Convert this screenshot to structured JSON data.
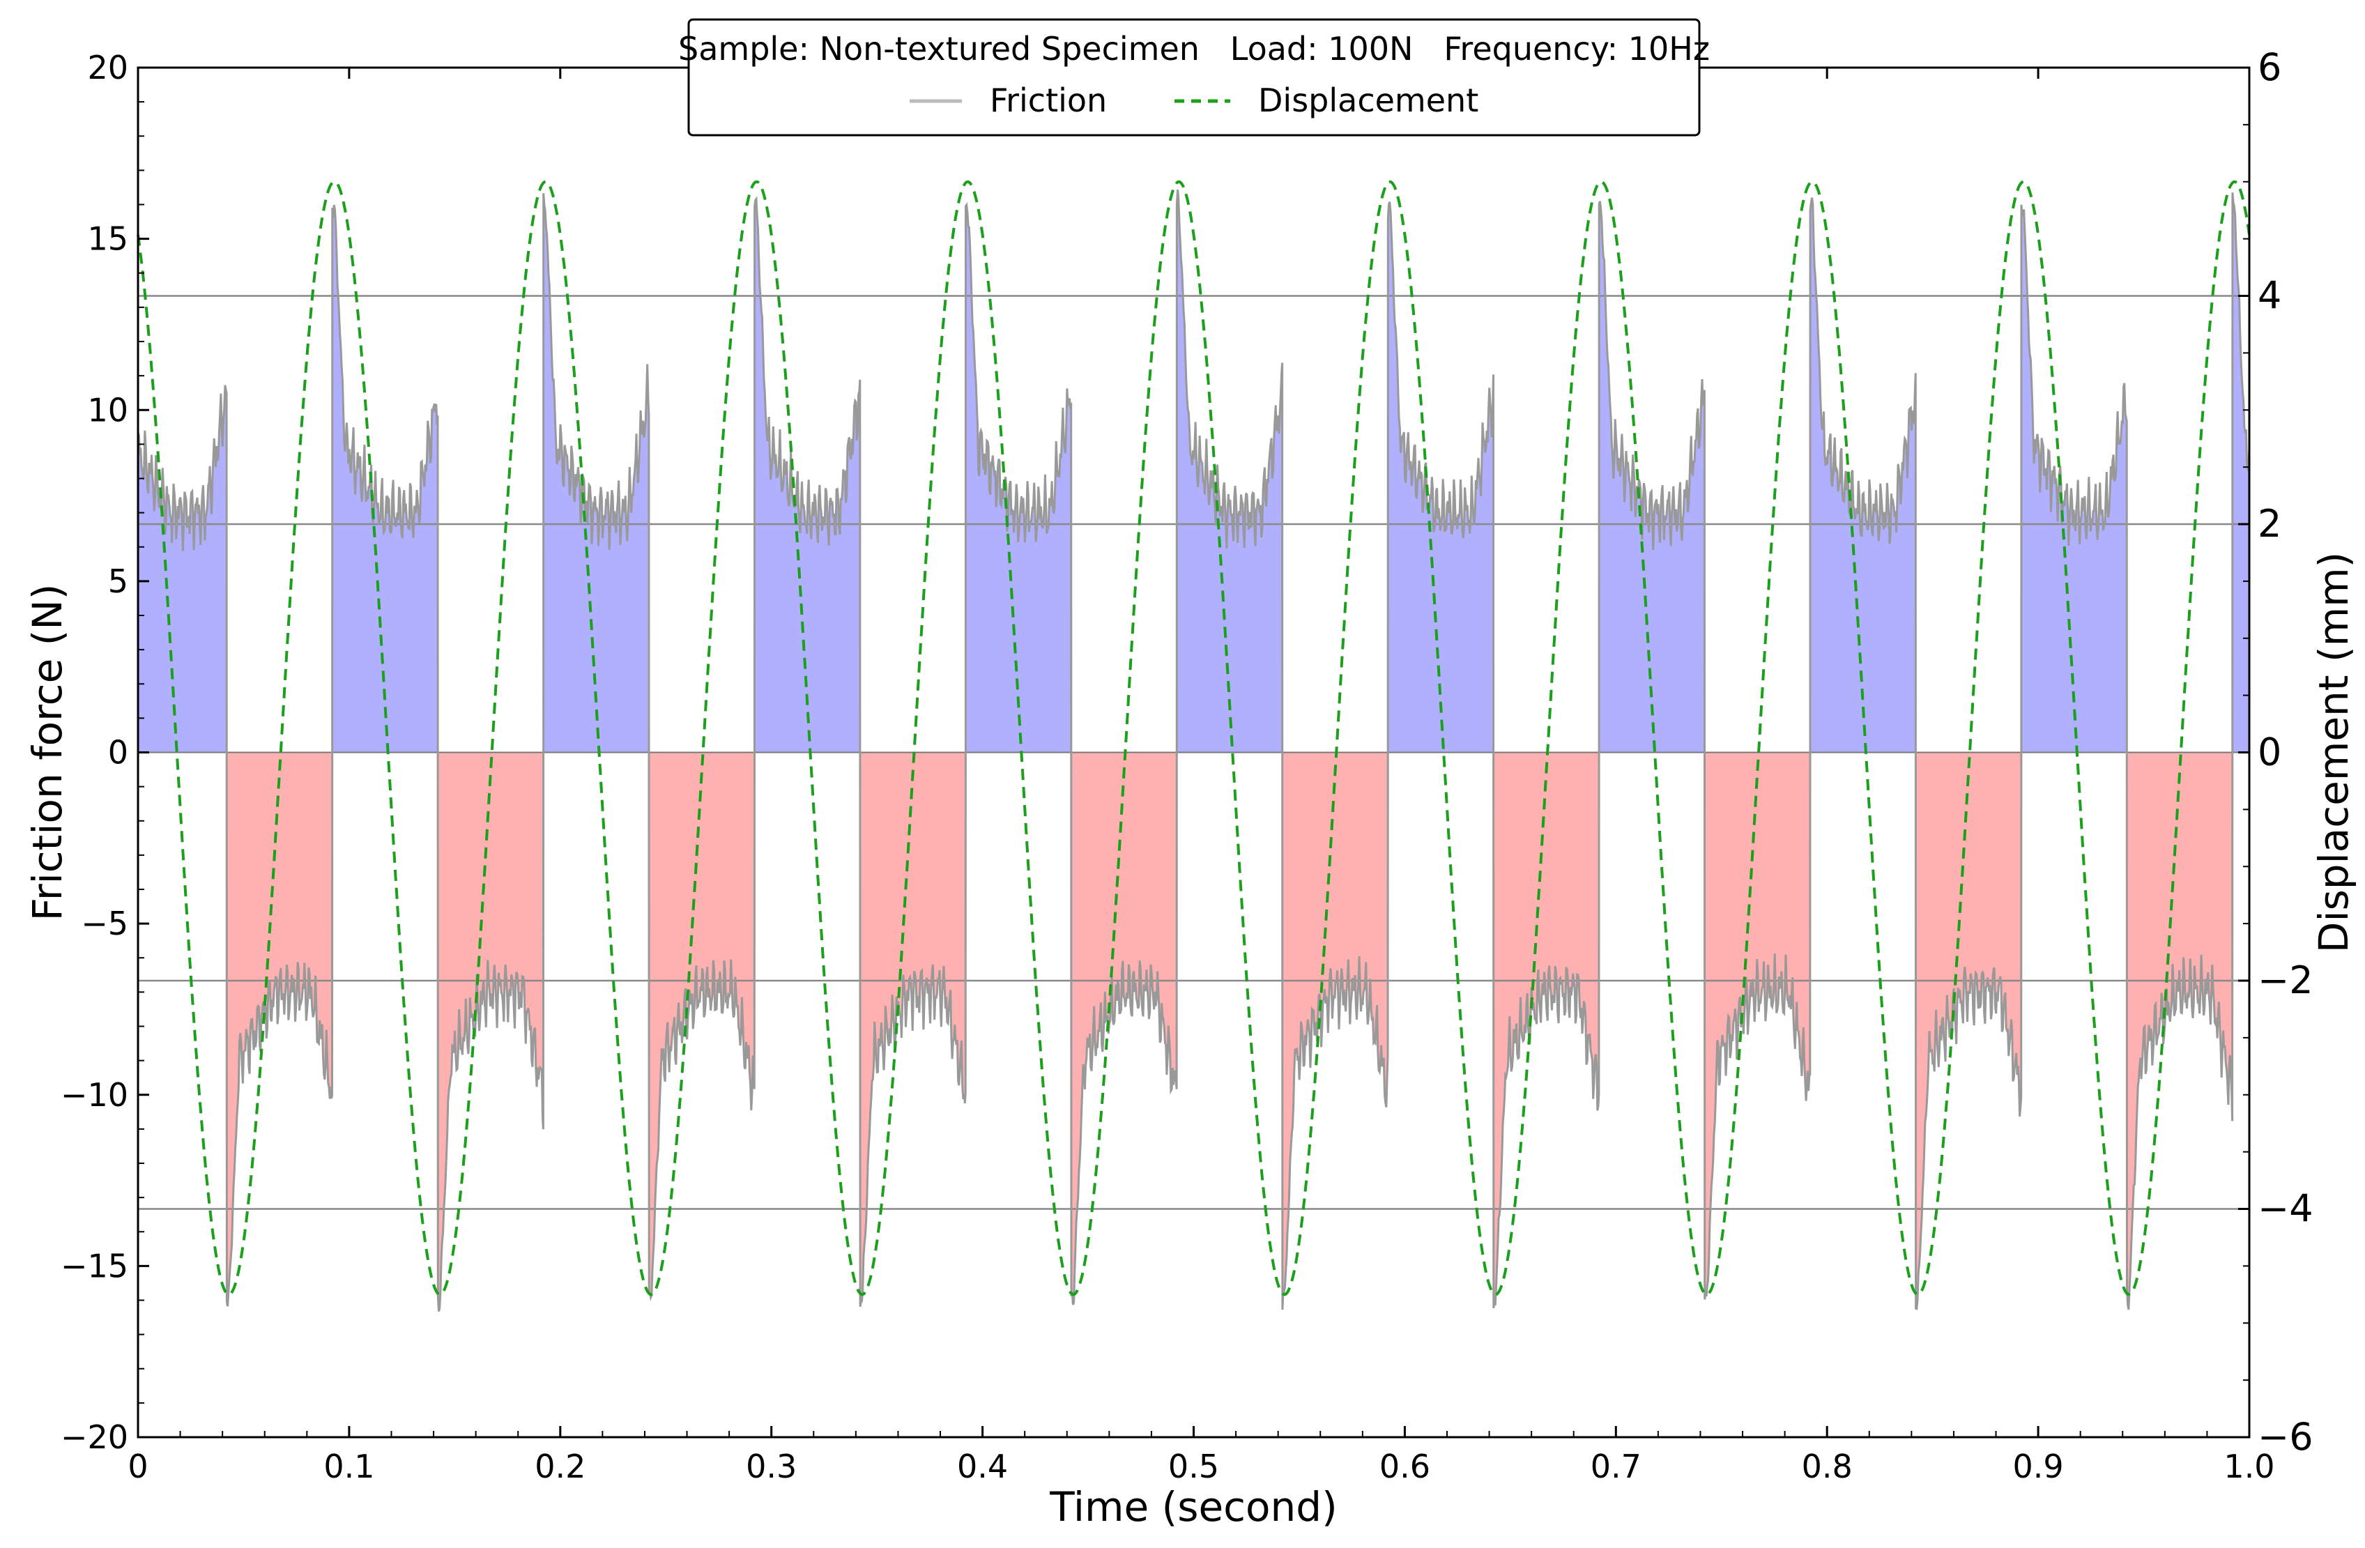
{
  "chart_data": {
    "type": "line",
    "title": "",
    "xlabel": "Time (second)",
    "ylabel": "Friction force (N)",
    "y2label": "Displacement (mm)",
    "xlim": [
      0,
      1.0
    ],
    "ylim": [
      -20,
      20
    ],
    "y2lim": [
      -6,
      6
    ],
    "xticks": [
      "0",
      "0.1",
      "0.2",
      "0.3",
      "0.4",
      "0.5",
      "0.6",
      "0.7",
      "0.8",
      "0.9",
      "1.0"
    ],
    "yticks": [
      "20",
      "15",
      "10",
      "5",
      "0",
      "−5",
      "−10",
      "−15",
      "−20"
    ],
    "y2ticks": [
      "6",
      "4",
      "2",
      "0",
      "−2",
      "−4",
      "−6"
    ],
    "reference_lines_right_axis": [
      4,
      2,
      -2,
      -4
    ],
    "legend": {
      "title": "Sample: Non-textured Specimen   Load: 100N   Frequency: 10Hz",
      "placement": "top-center",
      "entries": [
        "Friction",
        "Displacement"
      ]
    },
    "series": [
      {
        "name": "Friction",
        "axis": "left",
        "color": "#999999",
        "positive_fill": "#b0b0ff",
        "negative_fill": "#ffb0b0",
        "period_s": 0.1,
        "cycle_profile": {
          "positive_phase_s": [
            0.0,
            0.042
          ],
          "negative_phase_s": [
            0.042,
            0.092
          ],
          "peak_positive_N": 16,
          "peak_negative_N": -16,
          "plateau_positive_N": 7,
          "plateau_negative_N": -7,
          "end_of_half_cycle_positive_N": 10.5,
          "end_of_half_cycle_negative_N": -10
        }
      },
      {
        "name": "Displacement",
        "axis": "right",
        "color": "#1aa01a",
        "style": "dashed",
        "frequency_hz": 10,
        "amplitude_mm": 4.9,
        "max_mm": 5.0,
        "min_mm": -4.75,
        "value_at_t0_mm": 4.2,
        "first_min_t": 0.043,
        "first_max_t": 0.093
      }
    ]
  }
}
